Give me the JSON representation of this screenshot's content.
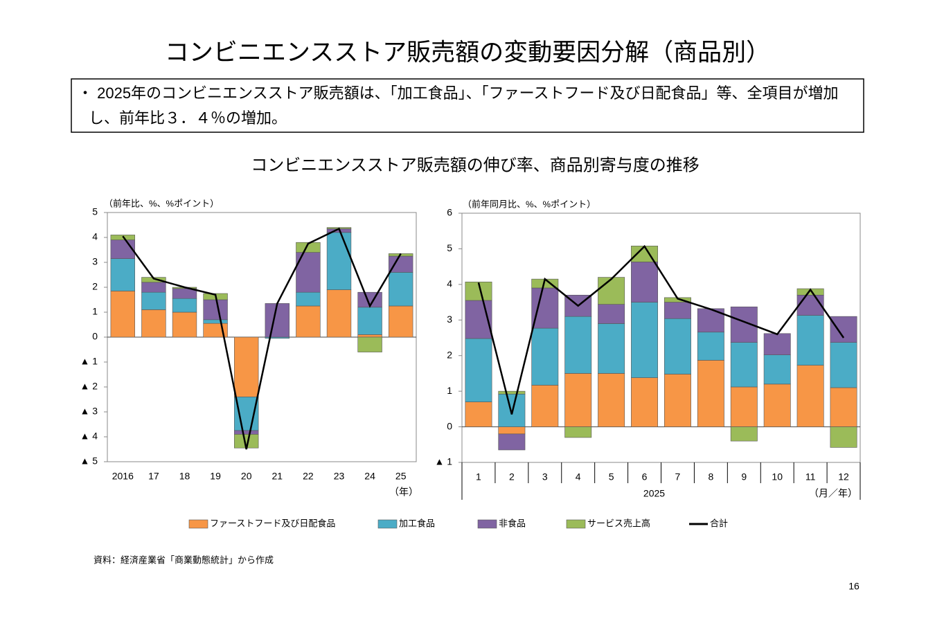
{
  "title": "コンビニエンスストア販売額の変動要因分解（商品別）",
  "summary": [
    "・ 2025年のコンビニエンスストア販売額は、「加工食品」、「ファーストフード及び日配食品」等、全項目が増加",
    "し、前年比３．４％の増加。"
  ],
  "chart_heading": "コンビニエンスストア販売額の伸び率、商品別寄与度の推移",
  "chart_data": [
    {
      "type": "bar",
      "stacked": true,
      "y_axis_label": "（前年比、%、%ポイント）",
      "x_unit": "（年）",
      "categories": [
        "2016",
        "17",
        "18",
        "19",
        "20",
        "21",
        "22",
        "23",
        "24",
        "25"
      ],
      "ylim": [
        -5,
        5
      ],
      "yticks": [
        {
          "value": -5,
          "label": "▲ 5"
        },
        {
          "value": -4,
          "label": "▲ 4"
        },
        {
          "value": -3,
          "label": "▲ 3"
        },
        {
          "value": -2,
          "label": "▲ 2"
        },
        {
          "value": -1,
          "label": "▲ 1"
        },
        0,
        1,
        2,
        3,
        4,
        5
      ],
      "series": [
        {
          "name": "ファーストフード及び日配食品",
          "color": "#f79646",
          "values": [
            1.85,
            1.1,
            1.0,
            0.55,
            -2.4,
            0,
            1.25,
            1.9,
            0.1,
            1.25
          ]
        },
        {
          "name": "加工食品",
          "color": "#4bacc6",
          "values": [
            1.3,
            0.7,
            0.55,
            0.15,
            -1.35,
            -0.05,
            0.55,
            2.3,
            1.1,
            1.35
          ]
        },
        {
          "name": "非食品",
          "color": "#8064a2",
          "values": [
            0.75,
            0.4,
            0.4,
            0.8,
            -0.15,
            1.35,
            1.6,
            0.15,
            0.6,
            0.65
          ]
        },
        {
          "name": "サービス売上高",
          "color": "#9bbb59",
          "values": [
            0.2,
            0.2,
            0.05,
            0.25,
            -0.55,
            0,
            0.4,
            0.05,
            -0.6,
            0.1
          ]
        },
        {
          "name": "合計",
          "color": "#000000",
          "type": "line",
          "values": [
            4.05,
            2.35,
            2.0,
            1.7,
            -4.5,
            1.35,
            3.75,
            4.35,
            1.25,
            3.35
          ]
        }
      ]
    },
    {
      "type": "bar",
      "stacked": true,
      "y_axis_label": "（前年同月比、%、%ポイント）",
      "x_unit": "（月／年）",
      "x_group_label": "2025",
      "categories": [
        "1",
        "2",
        "3",
        "4",
        "5",
        "6",
        "7",
        "8",
        "9",
        "10",
        "11",
        "12"
      ],
      "ylim": [
        -1,
        6
      ],
      "yticks": [
        {
          "value": -1,
          "label": "▲ 1"
        },
        0,
        1,
        2,
        3,
        4,
        5,
        6
      ],
      "series": [
        {
          "color": "#f79646",
          "values": [
            0.7,
            -0.2,
            1.17,
            1.5,
            1.5,
            1.38,
            1.48,
            1.87,
            1.12,
            1.2,
            1.73,
            1.1
          ]
        },
        {
          "color": "#4bacc6",
          "values": [
            1.78,
            0.92,
            1.6,
            1.6,
            1.4,
            2.12,
            1.56,
            0.79,
            1.25,
            0.82,
            1.4,
            1.27
          ]
        },
        {
          "color": "#8064a2",
          "values": [
            1.07,
            -0.45,
            1.13,
            0.6,
            0.54,
            1.13,
            0.46,
            0.66,
            1.0,
            0.6,
            0.57,
            0.73
          ]
        },
        {
          "color": "#9bbb59",
          "values": [
            0.52,
            0.08,
            0.25,
            -0.3,
            0.76,
            0.45,
            0.13,
            0,
            -0.4,
            0,
            0.18,
            -0.58
          ]
        },
        {
          "color": "#000000",
          "type": "line",
          "values": [
            4.05,
            0.35,
            4.15,
            3.4,
            4.15,
            5.07,
            3.6,
            3.3,
            2.95,
            2.6,
            3.85,
            2.5
          ]
        }
      ]
    }
  ],
  "source": "資料：経済産業省「商業動態統計」から作成",
  "page_number": "16"
}
